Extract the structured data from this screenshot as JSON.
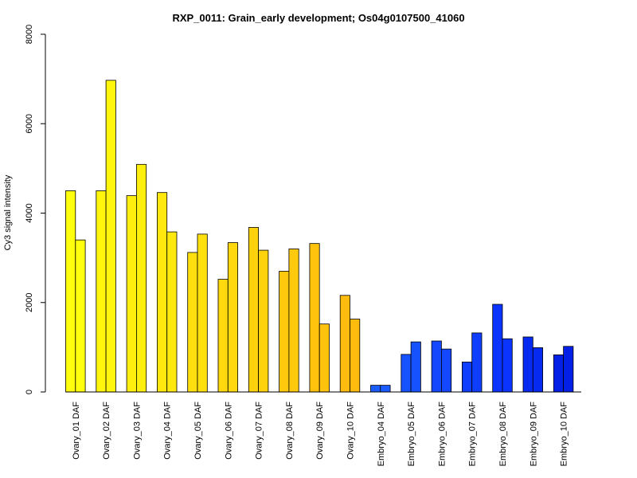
{
  "chart_data": {
    "type": "bar",
    "title": "RXP_0011: Grain_early development; Os04g0107500_41060",
    "ylabel": "Cy3 signal intensity",
    "xlabel": "",
    "ylim": [
      0,
      8000
    ],
    "yticks": [
      0,
      2000,
      4000,
      6000,
      8000
    ],
    "grid": false,
    "categories": [
      "Ovary_01 DAF",
      "Ovary_02 DAF",
      "Ovary_03 DAF",
      "Ovary_04 DAF",
      "Ovary_05 DAF",
      "Ovary_06 DAF",
      "Ovary_07 DAF",
      "Ovary_08 DAF",
      "Ovary_09 DAF",
      "Ovary_10 DAF",
      "Embryo_04 DAF",
      "Embryo_05 DAF",
      "Embryo_06 DAF",
      "Embryo_07 DAF",
      "Embryo_08 DAF",
      "Embryo_09 DAF",
      "Embryo_10 DAF"
    ],
    "colors": [
      "#FFFF0E",
      "#FFF60E",
      "#FFEF0E",
      "#FFE80E",
      "#FFE00E",
      "#FFD90E",
      "#FFD20E",
      "#FFCA0E",
      "#FFC30E",
      "#FFBC0E",
      "#1A5CFF",
      "#1752FF",
      "#1348FF",
      "#0F3EFF",
      "#0B34FF",
      "#072AF0",
      "#0420E6"
    ],
    "series": [
      {
        "values": [
          4500,
          4500,
          4390,
          4460,
          3120,
          2520,
          3680,
          2700,
          3320,
          2160,
          150,
          840,
          1140,
          670,
          1960,
          1230,
          830
        ]
      },
      {
        "values": [
          3400,
          6970,
          5090,
          3580,
          3530,
          3340,
          3170,
          3200,
          1520,
          1630,
          150,
          1120,
          960,
          1320,
          1190,
          990,
          1020
        ]
      }
    ]
  }
}
